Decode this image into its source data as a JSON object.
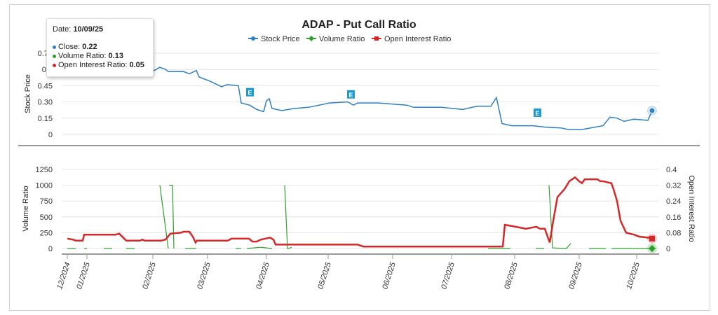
{
  "chart_data": {
    "type": "line",
    "title": "ADAP - Put Call Ratio",
    "legend": {
      "placement": "top-center",
      "entries": [
        {
          "name": "Stock Price",
          "color": "#2f7fc1"
        },
        {
          "name": "Volume Ratio",
          "color": "#2ca02c"
        },
        {
          "name": "Open Interest Ratio",
          "color": "#d62728"
        }
      ]
    },
    "x_ticks": [
      {
        "label": "12/2024",
        "idx": 0
      },
      {
        "label": "01/2025",
        "idx": 7
      },
      {
        "label": "02/2025",
        "idx": 30.5
      },
      {
        "label": "03/2025",
        "idx": 50
      },
      {
        "label": "04/2025",
        "idx": 71
      },
      {
        "label": "05/2025",
        "idx": 93
      },
      {
        "label": "06/2025",
        "idx": 116
      },
      {
        "label": "07/2025",
        "idx": 137
      },
      {
        "label": "08/2025",
        "idx": 159.5
      },
      {
        "label": "09/2025",
        "idx": 182.5
      },
      {
        "label": "10/2025",
        "idx": 203
      }
    ],
    "x_range": [
      0,
      208.5
    ],
    "upper": {
      "ylabel": "Stock Price",
      "ylim": [
        0,
        0.75
      ],
      "yticks": [
        "0",
        "0.15",
        "0.30",
        "0.45",
        "0.6",
        "0.75"
      ],
      "yvals": [
        0,
        0.15,
        0.3,
        0.45,
        0.6,
        0.75
      ],
      "stock_price": [
        [
          0,
          0.6
        ],
        [
          5.5,
          0.6
        ],
        [
          31,
          0.59
        ],
        [
          33,
          0.62
        ],
        [
          35,
          0.6
        ],
        [
          36,
          0.58
        ],
        [
          41.5,
          0.58
        ],
        [
          43.5,
          0.56
        ],
        [
          46,
          0.59
        ],
        [
          47,
          0.53
        ],
        [
          51,
          0.49
        ],
        [
          55,
          0.44
        ],
        [
          57,
          0.46
        ],
        [
          61,
          0.45
        ],
        [
          62,
          0.29
        ],
        [
          65,
          0.27
        ],
        [
          67.5,
          0.23
        ],
        [
          70,
          0.21
        ],
        [
          71,
          0.31
        ],
        [
          72,
          0.33
        ],
        [
          73,
          0.24
        ],
        [
          76.5,
          0.22
        ],
        [
          81,
          0.24
        ],
        [
          86,
          0.25
        ],
        [
          93.5,
          0.29
        ],
        [
          100,
          0.3
        ],
        [
          102,
          0.27
        ],
        [
          103.5,
          0.29
        ],
        [
          111,
          0.29
        ],
        [
          121,
          0.27
        ],
        [
          123.5,
          0.25
        ],
        [
          133.5,
          0.25
        ],
        [
          141,
          0.23
        ],
        [
          146,
          0.26
        ],
        [
          151,
          0.26
        ],
        [
          153,
          0.34
        ],
        [
          155,
          0.1
        ],
        [
          158.5,
          0.08
        ],
        [
          166,
          0.08
        ],
        [
          171,
          0.065
        ],
        [
          176,
          0.06
        ],
        [
          178.5,
          0.045
        ],
        [
          183.5,
          0.045
        ],
        [
          191,
          0.08
        ],
        [
          193.5,
          0.16
        ],
        [
          196,
          0.15
        ],
        [
          198.5,
          0.12
        ],
        [
          202,
          0.14
        ],
        [
          207,
          0.13
        ],
        [
          208.5,
          0.22
        ]
      ],
      "earnings_markers": [
        {
          "label": "E",
          "idx": 65,
          "y": 0.39
        },
        {
          "label": "E",
          "idx": 101,
          "y": 0.37
        },
        {
          "label": "E",
          "idx": 167.5,
          "y": 0.2
        }
      ]
    },
    "lower": {
      "ylabel_left": "Volume Ratio",
      "ylim_left": [
        0,
        1250
      ],
      "yticks_left": [
        "0",
        "250",
        "500",
        "750",
        "1000",
        "1250"
      ],
      "yvals_left": [
        0,
        250,
        500,
        750,
        1000,
        1250
      ],
      "ylabel_right": "Open Interest Ratio",
      "ylim_right": [
        0,
        0.4
      ],
      "yticks_right": [
        "0",
        "0.08",
        "0.16",
        "0.24",
        "0.32",
        "0.4"
      ],
      "yvals_right": [
        0,
        0.08,
        0.16,
        0.24,
        0.32,
        0.4
      ],
      "volume_ratio_segments": [
        [
          [
            0,
            0
          ],
          [
            3,
            0
          ]
        ],
        [
          [
            6,
            0
          ],
          [
            7,
            0
          ]
        ],
        [
          [
            13,
            0
          ],
          [
            16,
            0
          ]
        ],
        [
          [
            21,
            0
          ],
          [
            24,
            0
          ]
        ],
        [
          [
            33,
            1000
          ],
          [
            36,
            0
          ]
        ],
        [
          [
            36.3,
            1000
          ],
          [
            37.5,
            1000
          ],
          [
            38,
            0
          ]
        ],
        [
          [
            42,
            0
          ],
          [
            46,
            0
          ]
        ],
        [
          [
            60,
            0
          ],
          [
            62,
            0
          ]
        ],
        [
          [
            64,
            0
          ],
          [
            69,
            20
          ],
          [
            71,
            10
          ],
          [
            73,
            0
          ]
        ],
        [
          [
            77.5,
            1000
          ],
          [
            78.5,
            0
          ],
          [
            80,
            15
          ]
        ],
        [
          [
            150,
            0
          ],
          [
            158,
            0
          ]
        ],
        [
          [
            167,
            0
          ],
          [
            170,
            0
          ]
        ],
        [
          [
            171.75,
            1000
          ],
          [
            173,
            10
          ],
          [
            178,
            0
          ],
          [
            179.5,
            80
          ]
        ],
        [
          [
            186,
            0
          ],
          [
            192,
            0
          ]
        ],
        [
          [
            194,
            0
          ],
          [
            208.5,
            0
          ]
        ]
      ],
      "open_interest_ratio": [
        [
          0,
          0.05
        ],
        [
          2,
          0.045
        ],
        [
          3,
          0.04
        ],
        [
          5.5,
          0.04
        ],
        [
          6,
          0.07
        ],
        [
          17.25,
          0.07
        ],
        [
          18.5,
          0.075
        ],
        [
          21,
          0.04
        ],
        [
          26,
          0.04
        ],
        [
          26.75,
          0.045
        ],
        [
          27.5,
          0.04
        ],
        [
          33.5,
          0.04
        ],
        [
          35,
          0.045
        ],
        [
          36.75,
          0.075
        ],
        [
          40.5,
          0.08
        ],
        [
          41.5,
          0.085
        ],
        [
          43.5,
          0.085
        ],
        [
          44.75,
          0.06
        ],
        [
          45.75,
          0.03
        ],
        [
          46.25,
          0.04
        ],
        [
          57.25,
          0.04
        ],
        [
          58.5,
          0.05
        ],
        [
          64.75,
          0.05
        ],
        [
          66,
          0.035
        ],
        [
          67.5,
          0.035
        ],
        [
          69,
          0.045
        ],
        [
          72.25,
          0.055
        ],
        [
          73.5,
          0.045
        ],
        [
          74.25,
          0.02
        ],
        [
          103.5,
          0.02
        ],
        [
          105.5,
          0.01
        ],
        [
          155.25,
          0.01
        ],
        [
          156,
          0.12
        ],
        [
          159.75,
          0.11
        ],
        [
          163.5,
          0.1
        ],
        [
          167.25,
          0.11
        ],
        [
          168.5,
          0.1
        ],
        [
          170.25,
          0.1
        ],
        [
          172,
          0.03
        ],
        [
          173.25,
          0.14
        ],
        [
          174.75,
          0.26
        ],
        [
          177.25,
          0.3
        ],
        [
          179,
          0.34
        ],
        [
          181,
          0.36
        ],
        [
          182.5,
          0.34
        ],
        [
          183.5,
          0.33
        ],
        [
          184.5,
          0.35
        ],
        [
          189,
          0.35
        ],
        [
          190,
          0.34
        ],
        [
          191,
          0.34
        ],
        [
          194,
          0.33
        ],
        [
          194.75,
          0.3
        ],
        [
          196,
          0.24
        ],
        [
          197.25,
          0.14
        ],
        [
          199.25,
          0.08
        ],
        [
          202,
          0.07
        ],
        [
          204,
          0.06
        ],
        [
          207.25,
          0.055
        ],
        [
          208.5,
          0.05
        ]
      ]
    }
  },
  "tooltip": {
    "date_label": "Date: ",
    "date": "10/09/25",
    "close_label": "Close: ",
    "close": "0.22",
    "volume_label": "Volume Ratio: ",
    "volume": "0.13",
    "oi_label": "Open Interest Ratio: ",
    "oi": "0.05"
  }
}
